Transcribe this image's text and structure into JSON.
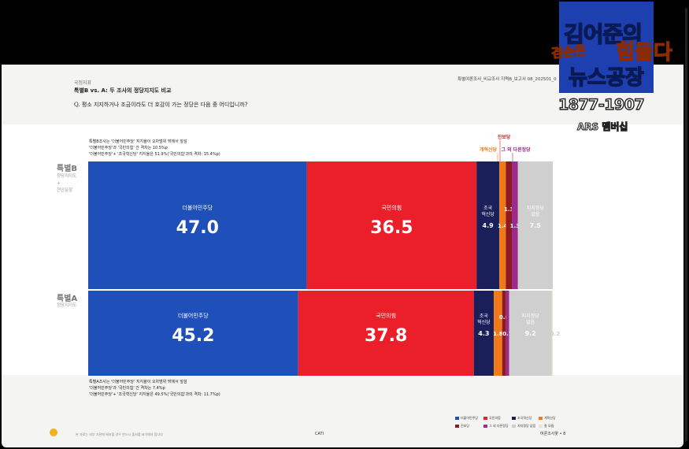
{
  "page": {
    "section_label": "국정지표",
    "section_title": "특별B vs. A: 두 조사의 정당지지도 비교",
    "doc_ref": "특별여론조사_비교조사 지역B_보고서   08_202501_0",
    "question": "Q. 평소 지지하거나 조금이라도 더 호감이 가는 정당은 다음 중 어디입니까?"
  },
  "rows": [
    {
      "label": "특별B",
      "sub": [
        "정당지지도",
        "+",
        "현안문항"
      ],
      "notes": [
        "특별B조사는 '더불어민주당' 지지율이 오차범위 밖에서 앞섬",
        "'더불어민주당'과 '국민의힘' 간 격차는 10.5%p",
        "'더불어민주당'+ '조국혁신당' 지지율은 51.9%('국민의힘'과의 격차: 15.4%p)"
      ]
    },
    {
      "label": "특별A",
      "sub": [
        "정당지지도"
      ],
      "notes": [
        "특별A조사는 '더불어민주당' 지지율이 오차범위 밖에서 앞섬",
        "'더불어민주당'과 '국민의힘' 간 격차는 7.4%p",
        "'더불어민주당'+ '조국혁신당' 지지율은 49.5%('국민의힘'과의 격차: 11.7%p)"
      ]
    }
  ],
  "chart_data": {
    "type": "bar",
    "orientation": "horizontal-stacked-100",
    "categories": [
      "특별B",
      "특별A"
    ],
    "series": [
      {
        "name": "더불어민주당",
        "color": "#1f4fb8",
        "values": [
          47.0,
          45.2
        ],
        "label_lines": [
          [
            "더불어민주당"
          ],
          [
            "더불어민주당"
          ]
        ]
      },
      {
        "name": "국민의힘",
        "color": "#ea1f2a",
        "values": [
          36.5,
          37.8
        ],
        "label_lines": [
          [
            "국민의힘"
          ],
          [
            "국민의힘"
          ]
        ]
      },
      {
        "name": "조국혁신당",
        "color": "#1a1f5a",
        "values": [
          4.9,
          4.3
        ],
        "label_lines": [
          [
            "조국",
            "혁신당"
          ],
          [
            "조국",
            "혁신당"
          ]
        ]
      },
      {
        "name": "개혁신당",
        "color": "#f07a1a",
        "values": [
          1.4,
          1.8
        ],
        "label_lines": [
          [],
          []
        ]
      },
      {
        "name": "진보당",
        "color": "#8c1a1f",
        "values": [
          1.3,
          0.8
        ],
        "label_lines": [
          [],
          []
        ]
      },
      {
        "name": "그 외 다른정당",
        "color": "#9a2a8c",
        "values": [
          1.3,
          0.7
        ],
        "label_lines": [
          [],
          []
        ]
      },
      {
        "name": "지지정당 없음",
        "color": "#cfcfcf",
        "values": [
          7.5,
          9.2
        ],
        "label_lines": [
          [
            "지지정당",
            "없음"
          ],
          [
            "지지정당",
            "없음"
          ]
        ]
      },
      {
        "name": "잘 모름",
        "color": "#e8e3d2",
        "values": [
          0,
          0.2
        ],
        "label_lines": [
          [],
          []
        ]
      }
    ],
    "top_callouts": [
      {
        "label": "진보당",
        "color": "#e02020"
      },
      {
        "label": "개혁신당",
        "color": "#f07a1a"
      },
      {
        "label": "그 외 다른정당",
        "color": "#9a2a8c"
      }
    ],
    "value_labels": {
      "row0": [
        "47.0",
        "36.5",
        "4.9",
        "1.4",
        "1.3",
        "1.3",
        "7.5"
      ],
      "row1": [
        "45.2",
        "37.8",
        "4.3",
        "1.8",
        "0.8",
        "0.7",
        "9.2",
        "0.2"
      ]
    },
    "xlabel": "",
    "ylabel": ""
  },
  "legend": [
    {
      "label": "더불어민주당",
      "color": "#1f4fb8"
    },
    {
      "label": "국민의힘",
      "color": "#ea1f2a"
    },
    {
      "label": "조국혁신당",
      "color": "#1a1f5a"
    },
    {
      "label": "개혁신당",
      "color": "#f07a1a"
    },
    {
      "label": "진보당",
      "color": "#8c1a1f"
    },
    {
      "label": "그 외 다른정당",
      "color": "#9a2a8c"
    },
    {
      "label": "지지정당 없음",
      "color": "#cfcfcf"
    },
    {
      "label": "잘 모름",
      "color": "#e8e3d2"
    }
  ],
  "footer": {
    "note": "본 자료는 외부 기관에 배포할 경우 반드시 출처를 표기해야 합니다",
    "brand": "CATI",
    "page": "여론조사꽃 • 8"
  },
  "overlay": {
    "logo_line1": "김어준의",
    "logo_line2a": "겸손은",
    "logo_line2b": "힘들다",
    "logo_line3": "뉴스공장",
    "phone": "1877-1907",
    "ars": "ARS 멤버십",
    "brand_color": "#1d3fb0"
  }
}
